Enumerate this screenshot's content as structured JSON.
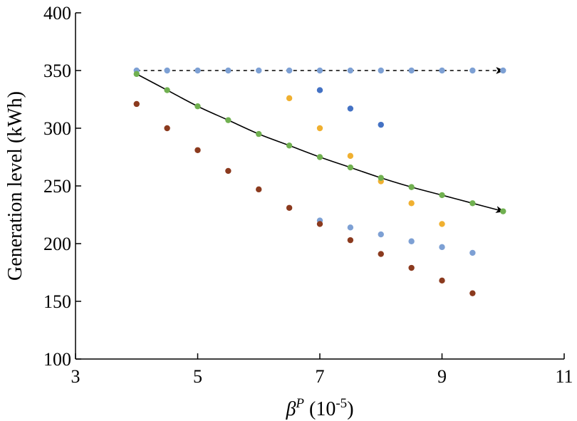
{
  "chart_data": {
    "type": "scatter",
    "title": "",
    "xlabel_symbol": "β",
    "xlabel_superscript": "P",
    "xlabel_unit_prefix": " (10",
    "xlabel_unit_exponent": "-5",
    "xlabel_unit_suffix": ")",
    "ylabel": "Generation level (kWh)",
    "xlim": [
      3,
      11
    ],
    "ylim": [
      100,
      400
    ],
    "xticks": [
      3,
      5,
      7,
      9,
      11
    ],
    "yticks": [
      100,
      150,
      200,
      250,
      300,
      350,
      400
    ],
    "grid": false,
    "legend": "none",
    "series": [
      {
        "color": "#7da0d4",
        "points": [
          [
            4,
            350
          ],
          [
            4.5,
            350
          ],
          [
            5,
            350
          ],
          [
            5.5,
            350
          ],
          [
            6,
            350
          ],
          [
            6.5,
            350
          ],
          [
            7,
            350
          ],
          [
            7.5,
            350
          ],
          [
            8,
            350
          ],
          [
            8.5,
            350
          ],
          [
            9,
            350
          ],
          [
            9.5,
            350
          ],
          [
            10,
            350
          ]
        ]
      },
      {
        "color": "#4472c4",
        "points": [
          [
            7,
            333
          ],
          [
            7.5,
            317
          ],
          [
            8,
            303
          ]
        ]
      },
      {
        "color": "#f0b030",
        "points": [
          [
            6.5,
            326
          ],
          [
            7,
            300
          ],
          [
            7.5,
            276
          ],
          [
            8,
            254
          ],
          [
            8.5,
            235
          ],
          [
            9,
            217
          ]
        ]
      },
      {
        "color": "#70b050",
        "points": [
          [
            4,
            347
          ],
          [
            4.5,
            333
          ],
          [
            5,
            319
          ],
          [
            5.5,
            307
          ],
          [
            6,
            295
          ],
          [
            6.5,
            285
          ],
          [
            7,
            275
          ],
          [
            7.5,
            266
          ],
          [
            8,
            257
          ],
          [
            8.5,
            249
          ],
          [
            9,
            242
          ],
          [
            9.5,
            235
          ],
          [
            10,
            228
          ]
        ]
      },
      {
        "color": "#7da0d4",
        "points": [
          [
            7,
            220
          ],
          [
            7.5,
            214
          ],
          [
            8,
            208
          ],
          [
            8.5,
            202
          ],
          [
            9,
            197
          ],
          [
            9.5,
            192
          ]
        ]
      },
      {
        "color": "#8b3a1e",
        "points": [
          [
            4,
            321
          ],
          [
            4.5,
            300
          ],
          [
            5,
            281
          ],
          [
            5.5,
            263
          ],
          [
            6,
            247
          ],
          [
            6.5,
            231
          ],
          [
            7,
            217
          ],
          [
            7.5,
            203
          ],
          [
            8,
            191
          ],
          [
            8.5,
            179
          ],
          [
            9,
            168
          ],
          [
            9.5,
            157
          ]
        ]
      }
    ],
    "arrows": [
      {
        "style": "dashed",
        "color": "#000000",
        "points": [
          [
            4,
            350
          ],
          [
            10,
            350
          ]
        ]
      },
      {
        "style": "solid",
        "color": "#000000",
        "points": [
          [
            4,
            347
          ],
          [
            4.5,
            333
          ],
          [
            5,
            319
          ],
          [
            5.5,
            307
          ],
          [
            6,
            295
          ],
          [
            6.5,
            285
          ],
          [
            7,
            275
          ],
          [
            7.5,
            266
          ],
          [
            8,
            257
          ],
          [
            8.5,
            249
          ],
          [
            9,
            242
          ],
          [
            9.5,
            235
          ],
          [
            10,
            228
          ]
        ]
      }
    ]
  }
}
